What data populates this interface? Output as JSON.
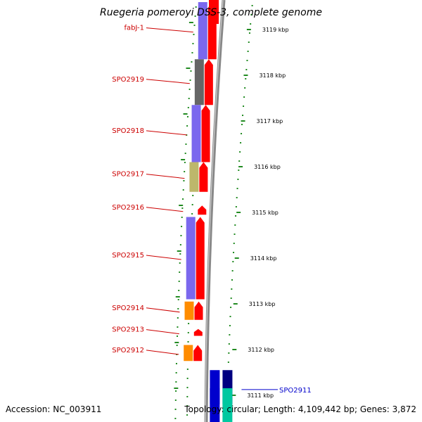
{
  "title": "Ruegeria pomeroyi DSS-3, complete genome",
  "footer": {
    "accession": "Accession: NC_003911",
    "topology": "Topology: circular; Length: 4,109,442 bp; Genes: 3,872"
  },
  "colors": {
    "reverse_label": "#cc0000",
    "forward_label": "#0000cc",
    "cds_track": "#ff0000",
    "backbone": "#888888",
    "tick": "#228b22"
  },
  "scale_unit": "kbp",
  "ticks": [
    {
      "label": "3119 kbp",
      "kbp": 3119
    },
    {
      "label": "3118 kbp",
      "kbp": 3118
    },
    {
      "label": "3117 kbp",
      "kbp": 3117
    },
    {
      "label": "3116 kbp",
      "kbp": 3116
    },
    {
      "label": "3115 kbp",
      "kbp": 3115
    },
    {
      "label": "3114 kbp",
      "kbp": 3114
    },
    {
      "label": "3113 kbp",
      "kbp": 3113
    },
    {
      "label": "3112 kbp",
      "kbp": 3112
    },
    {
      "label": "3111 kbp",
      "kbp": 3111
    }
  ],
  "genes": [
    {
      "name": "fabJ-1",
      "strand": "reverse",
      "start_kbp": 3118.35,
      "end_kbp": 3119.6,
      "category_color": "#7b68ee",
      "labeled": true
    },
    {
      "name": "SPO2919",
      "strand": "reverse",
      "start_kbp": 3117.35,
      "end_kbp": 3118.35,
      "category_color": "#666666",
      "labeled": true
    },
    {
      "name": "SPO2918",
      "strand": "reverse",
      "start_kbp": 3116.1,
      "end_kbp": 3117.35,
      "category_color": "#7b68ee",
      "labeled": true
    },
    {
      "name": "SPO2917",
      "strand": "reverse",
      "start_kbp": 3115.45,
      "end_kbp": 3116.1,
      "category_color": "#bdb76b",
      "labeled": true
    },
    {
      "name": "SPO2916",
      "strand": "reverse",
      "start_kbp": 3114.95,
      "end_kbp": 3115.15,
      "category_color": null,
      "labeled": true
    },
    {
      "name": "SPO2915",
      "strand": "reverse",
      "start_kbp": 3113.1,
      "end_kbp": 3114.9,
      "category_color": "#7b68ee",
      "labeled": true
    },
    {
      "name": "SPO2914",
      "strand": "reverse",
      "start_kbp": 3112.65,
      "end_kbp": 3113.05,
      "category_color": "#ff8c00",
      "labeled": true
    },
    {
      "name": "SPO2913",
      "strand": "reverse",
      "start_kbp": 3112.3,
      "end_kbp": 3112.45,
      "category_color": null,
      "labeled": true
    },
    {
      "name": "SPO2912",
      "strand": "reverse",
      "start_kbp": 3111.75,
      "end_kbp": 3112.1,
      "category_color": "#ff8c00",
      "labeled": true
    },
    {
      "name": "SPO2911",
      "strand": "forward",
      "start_kbp": 3110.7,
      "end_kbp": 3111.55,
      "category_color": "#0000cd",
      "labeled": true
    }
  ]
}
